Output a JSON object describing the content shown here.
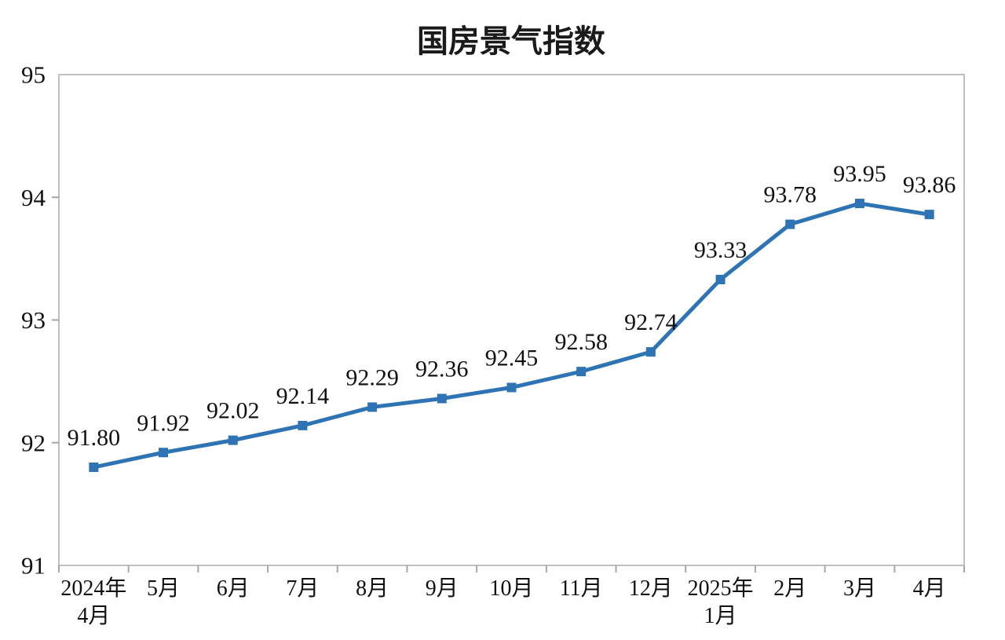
{
  "chart_data": {
    "type": "line",
    "title": "国房景气指数",
    "categories": [
      "2024年4月",
      "5月",
      "6月",
      "7月",
      "8月",
      "9月",
      "10月",
      "11月",
      "12月",
      "2025年1月",
      "2月",
      "3月",
      "4月"
    ],
    "values": [
      91.8,
      91.92,
      92.02,
      92.14,
      92.29,
      92.36,
      92.45,
      92.58,
      92.74,
      93.33,
      93.78,
      93.95,
      93.86
    ],
    "data_labels": [
      "91.80",
      "91.92",
      "92.02",
      "92.14",
      "92.29",
      "92.36",
      "92.45",
      "92.58",
      "92.74",
      "93.33",
      "93.78",
      "93.95",
      "93.86"
    ],
    "xlabel": "",
    "ylabel": "",
    "ylim": [
      91,
      95
    ],
    "yticks": [
      91,
      92,
      93,
      94,
      95
    ],
    "grid": false,
    "legend_position": "none",
    "marker": "square",
    "colors": {
      "series": "#2E74B5",
      "plot_border": "#BFBFBF",
      "tick": "#A6A6A6",
      "text": "#111111",
      "background": "#FFFFFF"
    }
  }
}
